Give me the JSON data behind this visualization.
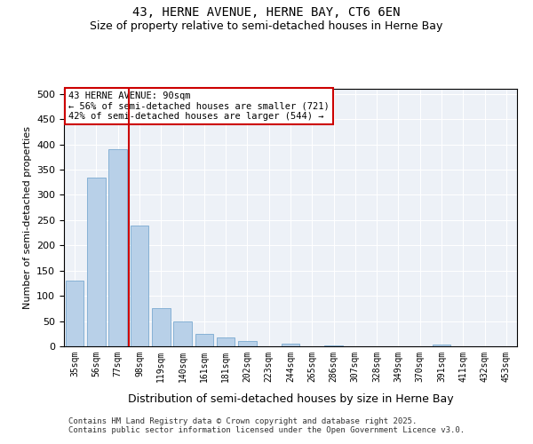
{
  "title": "43, HERNE AVENUE, HERNE BAY, CT6 6EN",
  "subtitle": "Size of property relative to semi-detached houses in Herne Bay",
  "xlabel": "Distribution of semi-detached houses by size in Herne Bay",
  "ylabel": "Number of semi-detached properties",
  "categories": [
    "35sqm",
    "56sqm",
    "77sqm",
    "98sqm",
    "119sqm",
    "140sqm",
    "161sqm",
    "181sqm",
    "202sqm",
    "223sqm",
    "244sqm",
    "265sqm",
    "286sqm",
    "307sqm",
    "328sqm",
    "349sqm",
    "370sqm",
    "391sqm",
    "411sqm",
    "432sqm",
    "453sqm"
  ],
  "values": [
    130,
    335,
    390,
    240,
    75,
    50,
    25,
    18,
    10,
    0,
    5,
    0,
    2,
    0,
    0,
    0,
    0,
    3,
    0,
    0,
    0
  ],
  "bar_color": "#b8d0e8",
  "bar_edge_color": "#7aaad0",
  "vline_color": "#cc0000",
  "annotation_title": "43 HERNE AVENUE: 90sqm",
  "annotation_line2": "← 56% of semi-detached houses are smaller (721)",
  "annotation_line3": "42% of semi-detached houses are larger (544) →",
  "annotation_box_color": "#cc0000",
  "ylim": [
    0,
    510
  ],
  "yticks": [
    0,
    50,
    100,
    150,
    200,
    250,
    300,
    350,
    400,
    450,
    500
  ],
  "footer_line1": "Contains HM Land Registry data © Crown copyright and database right 2025.",
  "footer_line2": "Contains public sector information licensed under the Open Government Licence v3.0.",
  "bg_color": "#edf1f7",
  "title_fontsize": 10,
  "subtitle_fontsize": 9
}
